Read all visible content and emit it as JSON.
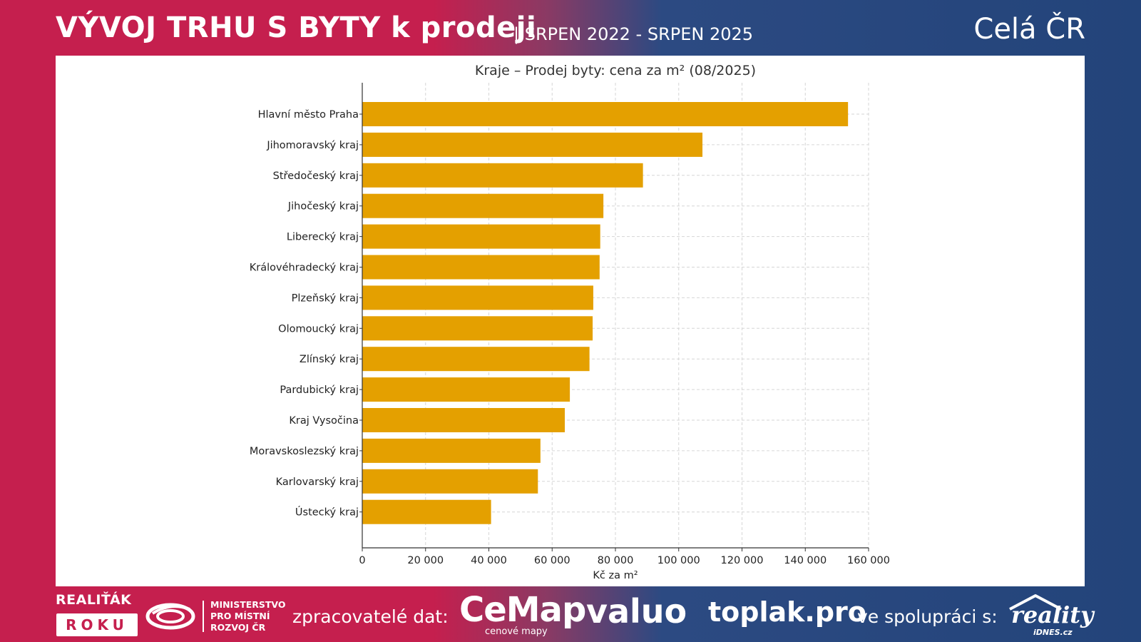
{
  "header": {
    "title": "VÝVOJ TRHU S BYTY k prodeji",
    "subtitle": "| SRPEN 2022 - SRPEN 2025",
    "region": "Celá ČR"
  },
  "colors": {
    "accent_red": "#c51f4e",
    "accent_blue": "#23447a",
    "bar": "#e4a000"
  },
  "footer": {
    "realitak": "REALIŤÁK",
    "roku": "ROKU",
    "ministry_lines": [
      "MINISTERSTVO",
      "PRO MÍSTNÍ",
      "ROZVOJ ČR"
    ],
    "processors_label": "zpracovatelé dat:",
    "cemap": "CeMap",
    "cemap_sub": "cenové mapy",
    "valuo": "valuo",
    "toplak": "toplak.pro",
    "cooperation_label": "ve spolupráci s:",
    "reality": "reality",
    "reality_sub": "iDNES.cz"
  },
  "chart_data": {
    "type": "bar",
    "orientation": "horizontal",
    "title": "Kraje – Prodej byty: cena za m² (08/2025)",
    "xlabel": "Kč za m²",
    "ylabel": "",
    "xlim": [
      0,
      160000
    ],
    "grid": true,
    "xticks": [
      "0",
      "20 000",
      "40 000",
      "60 000",
      "80 000",
      "100 000",
      "120 000",
      "140 000",
      "160 000"
    ],
    "categories": [
      "Hlavní město Praha",
      "Jihomoravský kraj",
      "Středočeský kraj",
      "Jihočeský kraj",
      "Liberecký kraj",
      "Královéhradecký kraj",
      "Plzeňský kraj",
      "Olomoucký kraj",
      "Zlínský kraj",
      "Pardubický kraj",
      "Kraj Vysočina",
      "Moravskoslezský kraj",
      "Karlovarský kraj",
      "Ústecký kraj"
    ],
    "values": [
      153500,
      107500,
      88700,
      76200,
      75200,
      75000,
      73000,
      72800,
      71800,
      65600,
      64000,
      56300,
      55500,
      40700
    ]
  }
}
